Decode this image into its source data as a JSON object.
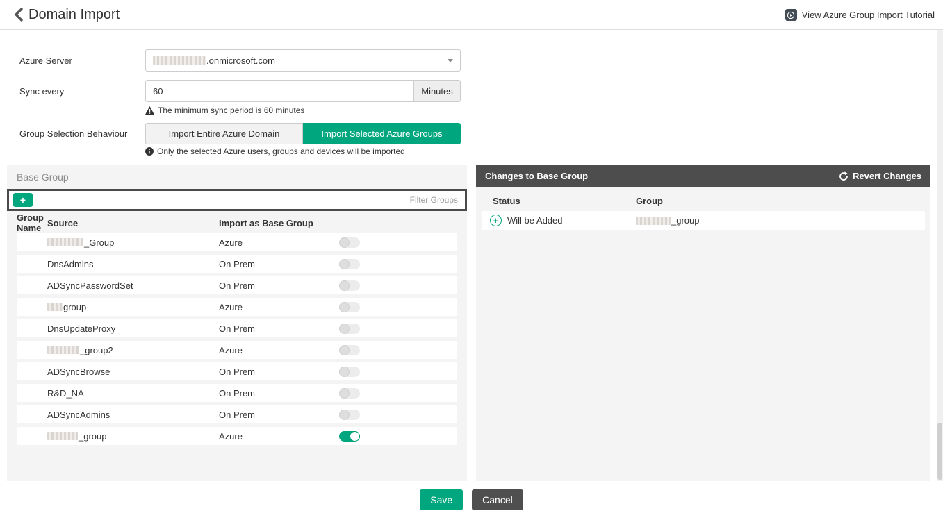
{
  "header": {
    "title": "Domain Import",
    "tutorial_link": "View Azure Group Import Tutorial"
  },
  "form": {
    "azure_server": {
      "label": "Azure Server",
      "value_suffix": ".onmicrosoft.com",
      "value_redacted_width": 76
    },
    "sync_every": {
      "label": "Sync every",
      "value": "60",
      "unit": "Minutes",
      "warning": "The minimum sync period is 60 minutes"
    },
    "group_selection": {
      "label": "Group Selection Behaviour",
      "option_entire": "Import Entire Azure Domain",
      "option_selected": "Import Selected Azure Groups",
      "selected": "Import Selected Azure Groups",
      "info": "Only the selected Azure users, groups and devices will be imported"
    }
  },
  "base_group_panel": {
    "title": "Base Group",
    "add_button": "+",
    "filter_placeholder": "Filter Groups",
    "columns": {
      "name": "Group Name",
      "source": "Source",
      "import": "Import as Base Group"
    },
    "rows": [
      {
        "name": "_Group",
        "redacted_width": 52,
        "source": "Azure",
        "enabled": false
      },
      {
        "name": "DnsAdmins",
        "redacted_width": 0,
        "source": "On Prem",
        "enabled": false
      },
      {
        "name": "ADSyncPasswordSet",
        "redacted_width": 0,
        "source": "On Prem",
        "enabled": false
      },
      {
        "name": "group",
        "redacted_width": 22,
        "source": "Azure",
        "enabled": false
      },
      {
        "name": "DnsUpdateProxy",
        "redacted_width": 0,
        "source": "On Prem",
        "enabled": false
      },
      {
        "name": "_group2",
        "redacted_width": 46,
        "source": "Azure",
        "enabled": false
      },
      {
        "name": "ADSyncBrowse",
        "redacted_width": 0,
        "source": "On Prem",
        "enabled": false
      },
      {
        "name": "R&D_NA",
        "redacted_width": 0,
        "source": "On Prem",
        "enabled": false
      },
      {
        "name": "ADSyncAdmins",
        "redacted_width": 0,
        "source": "On Prem",
        "enabled": false
      },
      {
        "name": "_group",
        "redacted_width": 44,
        "source": "Azure",
        "enabled": true
      }
    ]
  },
  "changes_panel": {
    "title": "Changes to Base Group",
    "revert_button": "Revert Changes",
    "columns": {
      "status": "Status",
      "group": "Group"
    },
    "rows": [
      {
        "status": "Will be Added",
        "icon": "plus-circle-icon",
        "group": "_group",
        "redacted_width": 50
      }
    ]
  },
  "footer": {
    "save": "Save",
    "cancel": "Cancel"
  },
  "colors": {
    "accent_green": "#00a77e",
    "dark_gray": "#4d4d4d",
    "panel_bg": "#f4f4f4"
  }
}
